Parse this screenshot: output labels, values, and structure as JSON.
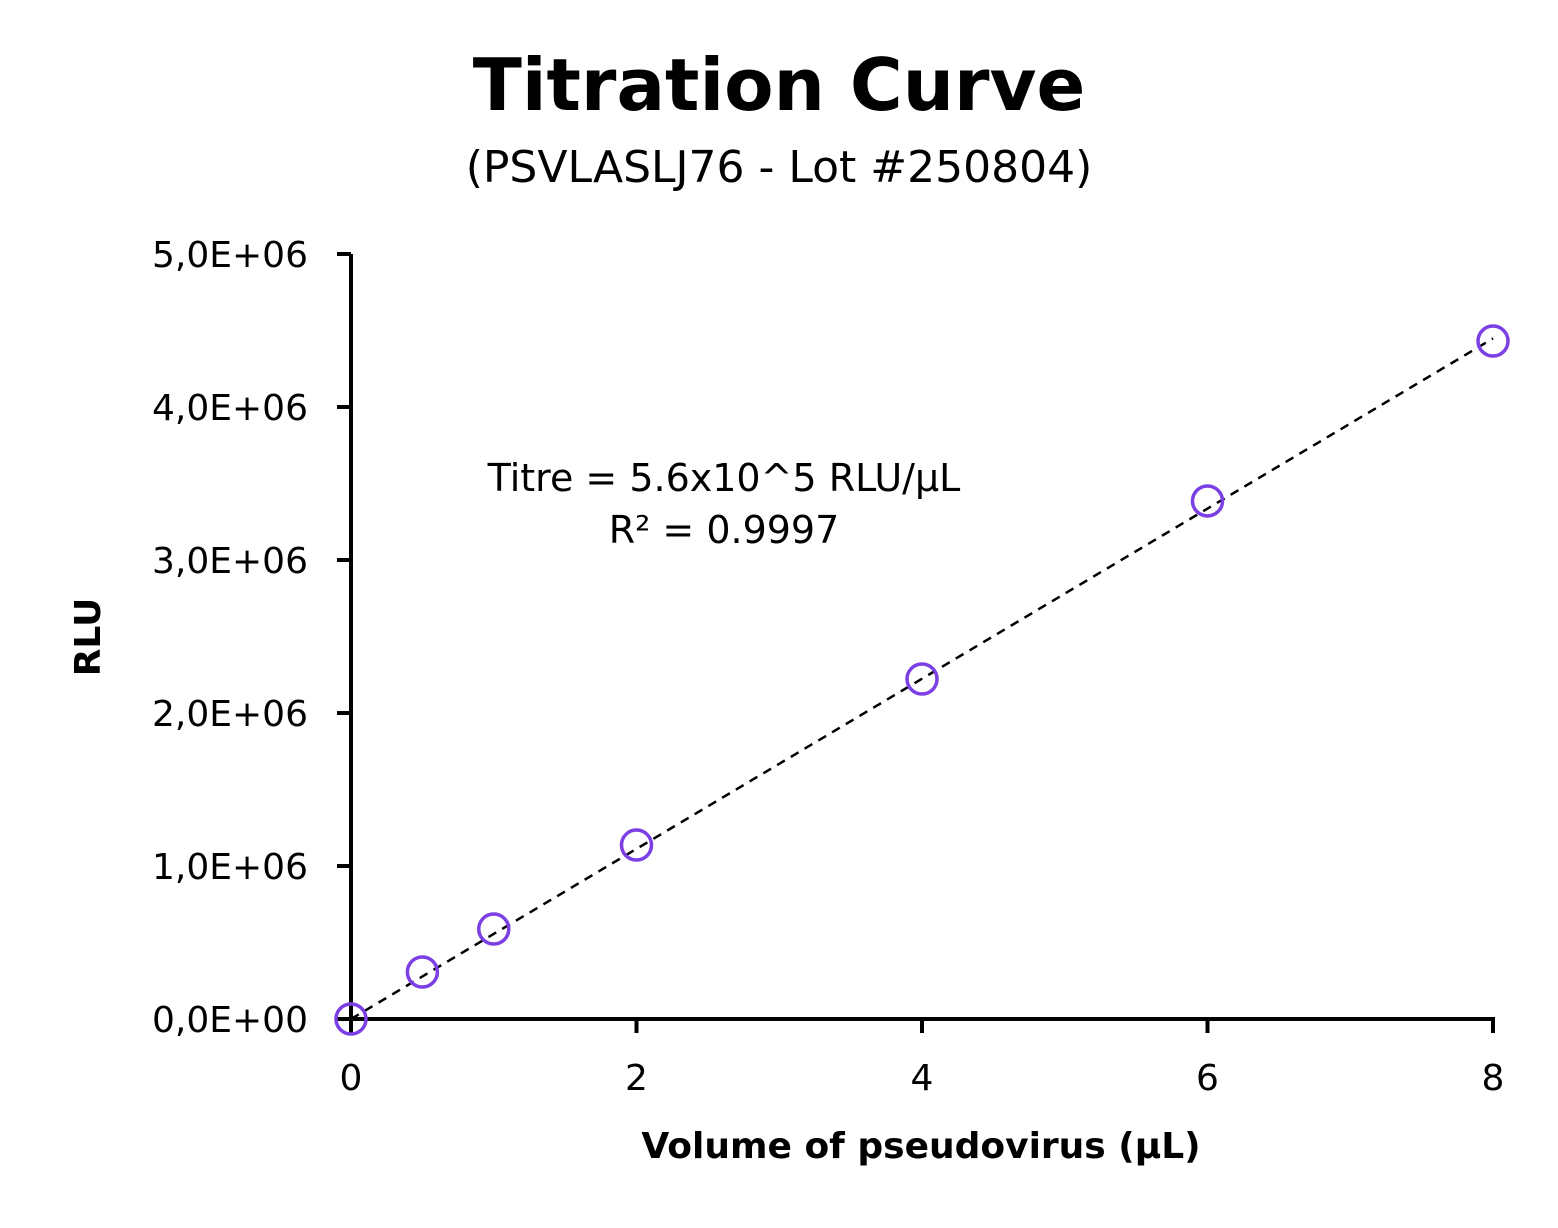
{
  "chart_data": {
    "type": "scatter",
    "title": "Titration Curve",
    "subtitle": "(PSVLASLJ76 - Lot #250804)",
    "xlabel": "Volume of pseudovirus (µL)",
    "ylabel": "RLU",
    "xlim": [
      0,
      8
    ],
    "ylim": [
      0,
      5000000
    ],
    "x_ticks": [
      0,
      2,
      4,
      6,
      8
    ],
    "x_tick_labels": [
      "0",
      "2",
      "4",
      "6",
      "8"
    ],
    "y_ticks": [
      0,
      1000000,
      2000000,
      3000000,
      4000000,
      5000000
    ],
    "y_tick_labels": [
      "0,0E+00",
      "1,0E+06",
      "2,0E+06",
      "3,0E+06",
      "4,0E+06",
      "5,0E+06"
    ],
    "grid": false,
    "legend": "none",
    "series": [
      {
        "name": "RLU",
        "marker": "open-circle",
        "color": "#7B3FE4",
        "x": [
          0,
          0.5,
          1,
          2,
          4,
          6,
          8
        ],
        "y": [
          0,
          307000,
          588000,
          1137000,
          2222000,
          3386000,
          4431000
        ]
      }
    ],
    "trendline": {
      "type": "linear",
      "style": "dashed",
      "color": "#000000",
      "x_range": [
        0,
        8
      ],
      "slope": 556000,
      "intercept": 0
    },
    "annotations": [
      "Titre = 5.6x10^5 RLU/µL",
      "R² = 0.9997"
    ]
  }
}
